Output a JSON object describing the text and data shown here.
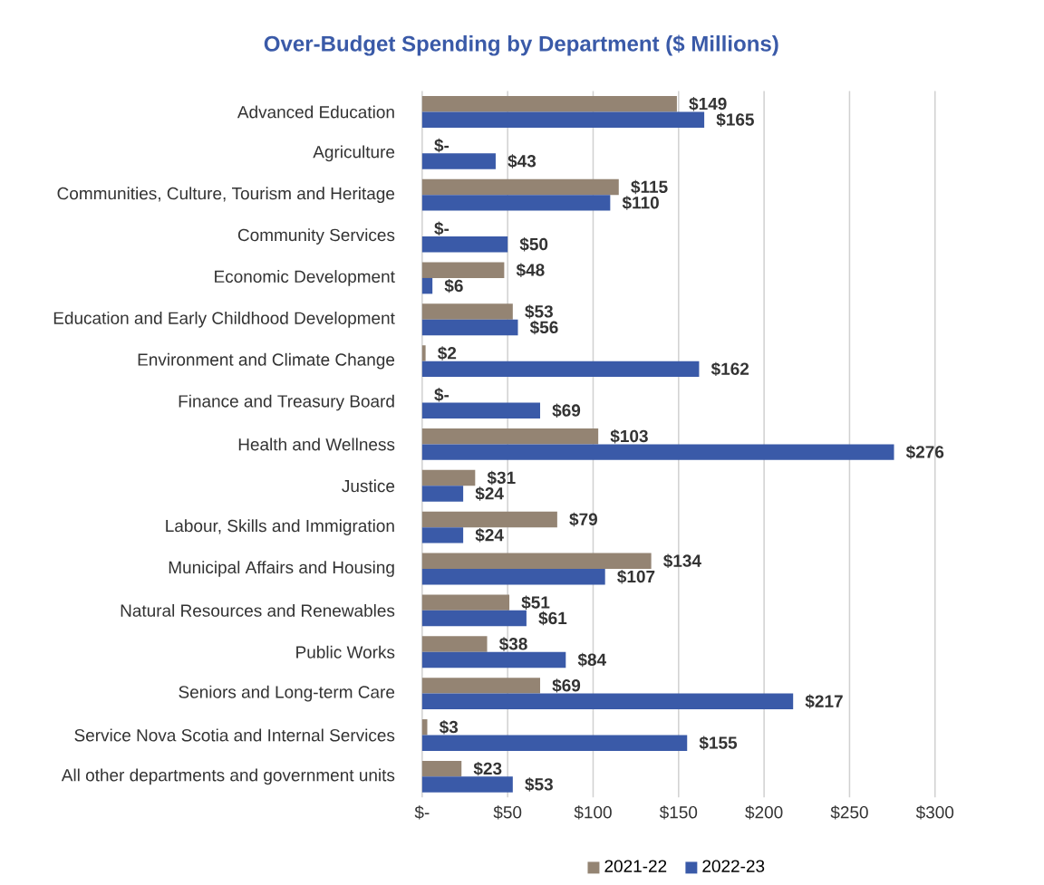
{
  "chart_data": {
    "type": "bar",
    "orientation": "horizontal",
    "title": "Over-Budget Spending by Department ($ Millions)",
    "categories": [
      "Advanced Education",
      "Agriculture",
      "Communities, Culture, Tourism and Heritage",
      "Community Services",
      "Economic Development",
      "Education and Early Childhood Development",
      "Environment and Climate Change",
      "Finance and Treasury Board",
      "Health and Wellness",
      "Justice",
      "Labour, Skills and Immigration",
      "Municipal Affairs and Housing",
      "Natural Resources and Renewables",
      "Public Works",
      "Seniors and Long-term Care",
      "Service Nova Scotia and Internal Services",
      "All other departments and government units"
    ],
    "series": [
      {
        "name": "2021-22",
        "color": "#948473",
        "values": [
          149,
          0,
          115,
          0,
          48,
          53,
          2,
          0,
          103,
          31,
          79,
          134,
          51,
          38,
          69,
          3,
          23
        ],
        "value_labels": [
          "$149",
          "$-",
          "$115",
          "$-",
          "$48",
          "$53",
          "$2",
          "$-",
          "$103",
          "$31",
          "$79",
          "$134",
          "$51",
          "$38",
          "$69",
          "$3",
          "$23"
        ]
      },
      {
        "name": "2022-23",
        "color": "#3a5aa8",
        "values": [
          165,
          43,
          110,
          50,
          6,
          56,
          162,
          69,
          276,
          24,
          24,
          107,
          61,
          84,
          217,
          155,
          53
        ],
        "value_labels": [
          "$165",
          "$43",
          "$110",
          "$50",
          "$6",
          "$56",
          "$162",
          "$69",
          "$276",
          "$24",
          "$24",
          "$107",
          "$61",
          "$84",
          "$217",
          "$155",
          "$53"
        ]
      }
    ],
    "xlim": [
      0,
      300
    ],
    "xticks": [
      {
        "value": 0,
        "label": "$-"
      },
      {
        "value": 50,
        "label": "$50"
      },
      {
        "value": 100,
        "label": "$100"
      },
      {
        "value": 150,
        "label": "$150"
      },
      {
        "value": 200,
        "label": "$200"
      },
      {
        "value": 250,
        "label": "$250"
      },
      {
        "value": 300,
        "label": "$300"
      }
    ],
    "grid": "x",
    "legend": "bottom"
  }
}
